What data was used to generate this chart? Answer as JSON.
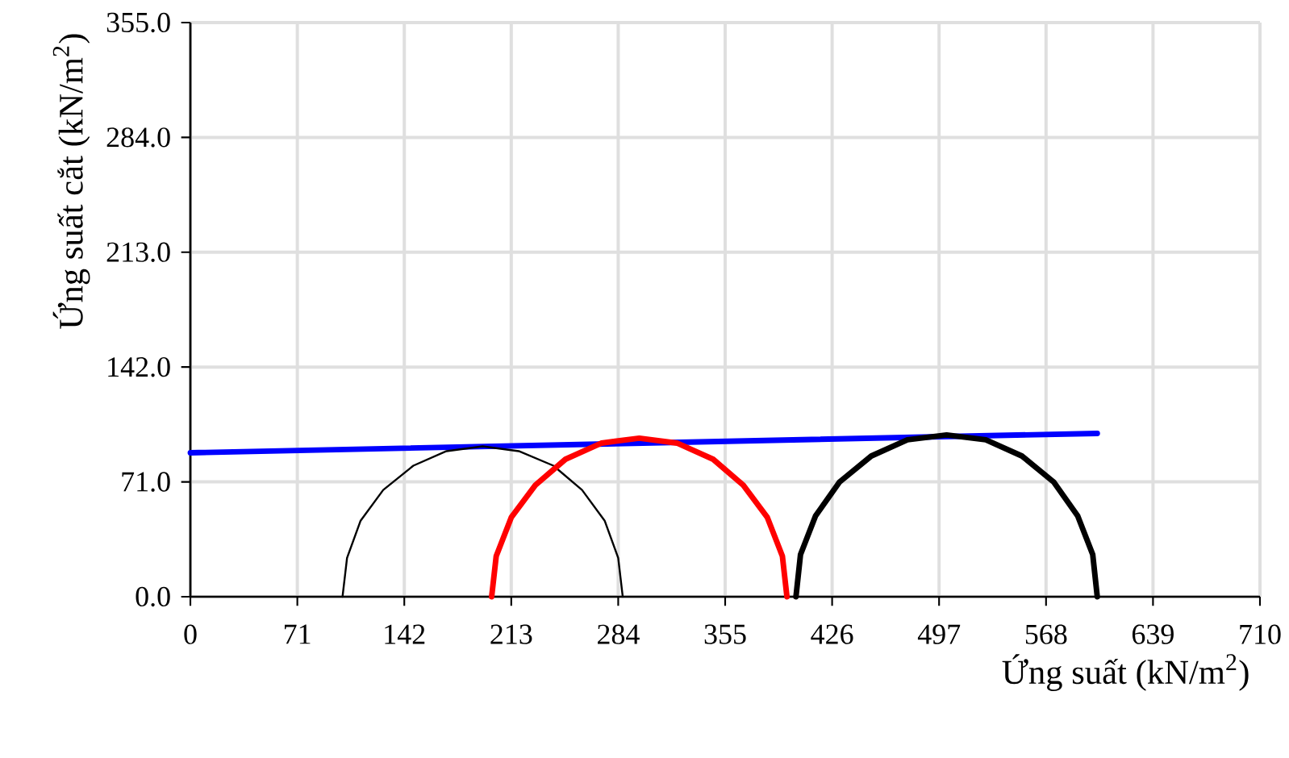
{
  "chart_data": {
    "type": "line",
    "xlabel": "Ứng suất (kN/m$^{2}$)",
    "ylabel": "Ứng suất cắt (kN/m$^{2}$)",
    "xlim": [
      0,
      710
    ],
    "ylim": [
      0,
      355
    ],
    "xticks": [
      0,
      71,
      142,
      213,
      284,
      355,
      426,
      497,
      568,
      639,
      710
    ],
    "yticks": [
      {
        "value": 0,
        "label": "0.0"
      },
      {
        "value": 71,
        "label": "71.0"
      },
      {
        "value": 142,
        "label": "142.0"
      },
      {
        "value": 213,
        "label": "213.0"
      },
      {
        "value": 284,
        "label": "284.0"
      },
      {
        "value": 355,
        "label": "355.0"
      }
    ],
    "grid": true,
    "marker": "none",
    "line_style": "solid",
    "series": [
      {
        "color": "#0000ff",
        "x": [
          0,
          602
        ],
        "values": [
          89,
          101
        ]
      },
      {
        "color": "#000000",
        "x": [
          287,
          284,
          275,
          260,
          241,
          218,
          194,
          170,
          148,
          128,
          113,
          104,
          101
        ],
        "values": [
          0,
          24,
          47,
          66,
          81,
          90,
          93,
          90,
          81,
          66,
          47,
          24,
          0
        ]
      },
      {
        "color": "#ff0000",
        "x": [
          396,
          393,
          383,
          367,
          347,
          323,
          298,
          273,
          249,
          229,
          213,
          203,
          200
        ],
        "values": [
          0,
          25,
          49,
          69,
          85,
          95,
          98,
          95,
          85,
          69,
          49,
          25,
          0
        ]
      },
      {
        "color": "#000000",
        "x": [
          602,
          599,
          589,
          573,
          552,
          528,
          502,
          476,
          452,
          431,
          415,
          405,
          402
        ],
        "values": [
          0,
          26,
          50,
          71,
          87,
          97,
          100,
          97,
          87,
          71,
          50,
          26,
          0
        ]
      }
    ]
  }
}
